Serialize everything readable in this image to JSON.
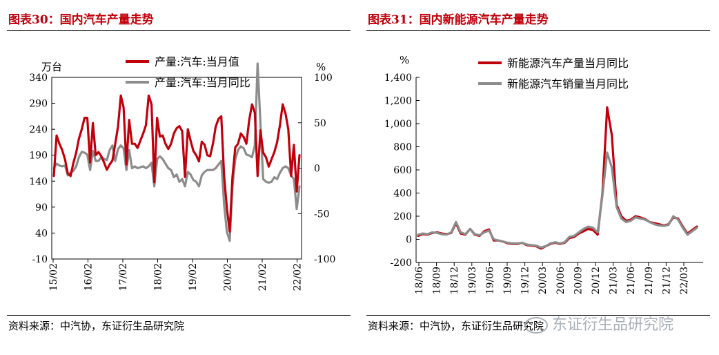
{
  "left": {
    "title": "图表30：国内汽车产量走势",
    "source": "资料来源：中汽协，东证衍生品研究院",
    "chart_data": {
      "type": "line",
      "y_unit_left": "万台",
      "y_unit_right": "%",
      "ylim_left": [
        -10,
        340
      ],
      "ylim_right": [
        -100,
        100
      ],
      "yticks_left": [
        "340",
        "290",
        "240",
        "190",
        "140",
        "90",
        "40",
        "-10"
      ],
      "yticks_right": [
        "100",
        "50",
        "0",
        "-50",
        "-100"
      ],
      "xticks": [
        "15/02",
        "16/02",
        "17/02",
        "18/02",
        "19/02",
        "20/02",
        "21/02",
        "22/02"
      ],
      "series": [
        {
          "name": "产量:汽车:当月值",
          "axis": "left",
          "color": "#c0000b",
          "values": [
            150,
            228,
            212,
            200,
            182,
            155,
            150,
            175,
            195,
            222,
            240,
            262,
            262,
            176,
            252,
            190,
            196,
            188,
            176,
            162,
            172,
            180,
            212,
            245,
            305,
            282,
            172,
            258,
            212,
            212,
            204,
            218,
            232,
            248,
            305,
            288,
            138,
            262,
            226,
            228,
            212,
            202,
            212,
            232,
            242,
            246,
            236,
            148,
            240,
            218,
            198,
            190,
            178,
            216,
            210,
            190,
            188,
            212,
            245,
            260,
            265,
            150,
            88,
            43,
            148,
            205,
            212,
            232,
            225,
            212,
            258,
            288,
            272,
            150,
            238,
            195,
            186,
            168,
            182,
            196,
            215,
            248,
            288,
            270,
            240,
            150,
            210,
            120,
            190
          ]
        },
        {
          "name": "产量:汽车:当月同比",
          "axis": "right",
          "color": "#8c8c8c",
          "values": [
            0,
            5,
            3,
            2,
            3,
            -8,
            -5,
            -3,
            2,
            12,
            18,
            17,
            15,
            -2,
            19,
            8,
            8,
            12,
            10,
            9,
            20,
            25,
            8,
            21,
            25,
            22,
            -2,
            20,
            0,
            2,
            0,
            1,
            2,
            0,
            2,
            6,
            -20,
            10,
            13,
            10,
            5,
            0,
            -2,
            -10,
            -7,
            -15,
            -12,
            -20,
            -4,
            -7,
            -13,
            -15,
            -20,
            -8,
            -4,
            -2,
            -2,
            -2,
            0,
            4,
            8,
            -40,
            -70,
            -80,
            -20,
            10,
            20,
            24,
            22,
            15,
            14,
            12,
            25,
            150,
            50,
            -12,
            -15,
            -16,
            -15,
            -10,
            -12,
            -5,
            0,
            2,
            0,
            -8,
            -12,
            -45,
            -20
          ]
        }
      ]
    }
  },
  "right": {
    "title": "图表31：国内新能源汽车产量走势",
    "source": "资料来源：中汽协，东证衍生品研究院",
    "chart_data": {
      "type": "line",
      "y_unit": "%",
      "ylim": [
        -200,
        1400
      ],
      "yticks": [
        "1,400",
        "1,200",
        "1,000",
        "800",
        "600",
        "400",
        "200",
        "0",
        "-200"
      ],
      "xticks": [
        "18/06",
        "18/09",
        "18/12",
        "19/03",
        "19/06",
        "19/09",
        "19/12",
        "20/03",
        "20/06",
        "20/09",
        "20/12",
        "21/03",
        "21/06",
        "21/09",
        "21/12",
        "22/03"
      ],
      "series": [
        {
          "name": "新能源汽车产量当月同比",
          "color": "#c0000b",
          "values": [
            30,
            45,
            40,
            55,
            60,
            50,
            45,
            55,
            140,
            50,
            40,
            90,
            40,
            30,
            70,
            85,
            -10,
            -10,
            -20,
            -35,
            -40,
            -40,
            -30,
            -50,
            -55,
            -60,
            -80,
            -60,
            -40,
            -30,
            -40,
            -30,
            10,
            20,
            50,
            70,
            90,
            80,
            40,
            400,
            1140,
            900,
            300,
            200,
            160,
            170,
            200,
            190,
            175,
            150,
            140,
            130,
            120,
            130,
            190,
            180,
            110,
            50,
            80,
            110
          ]
        },
        {
          "name": "新能源汽车销量当月同比",
          "color": "#8c8c8c",
          "values": [
            40,
            50,
            45,
            60,
            55,
            45,
            40,
            60,
            150,
            60,
            45,
            90,
            45,
            35,
            60,
            75,
            0,
            -10,
            -20,
            -30,
            -35,
            -35,
            -30,
            -45,
            -50,
            -55,
            -70,
            -60,
            -35,
            -25,
            -35,
            -25,
            20,
            30,
            60,
            90,
            110,
            100,
            60,
            380,
            750,
            620,
            280,
            180,
            150,
            160,
            190,
            180,
            170,
            150,
            130,
            120,
            115,
            125,
            200,
            170,
            100,
            40,
            70,
            100
          ]
        }
      ]
    }
  }
}
